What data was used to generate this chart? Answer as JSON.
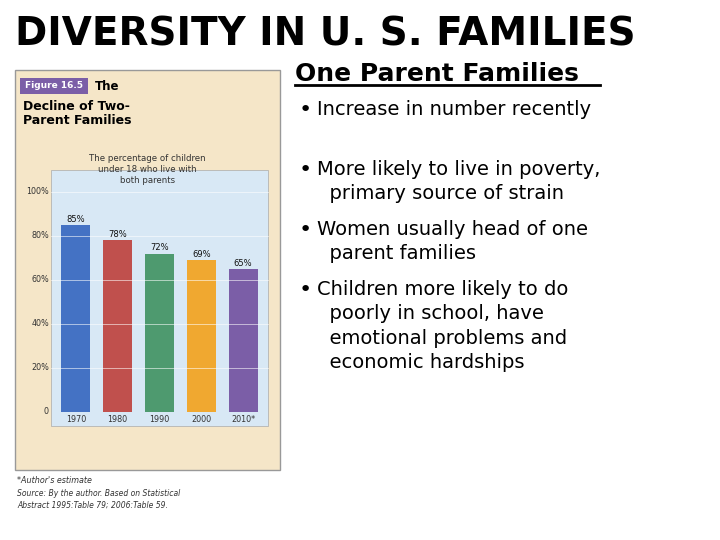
{
  "title": "DIVERSITY IN U. S. FAMILIES",
  "title_fontsize": 28,
  "title_fontweight": "bold",
  "background_color": "#ffffff",
  "right_heading": "One Parent Families",
  "bullet_points": [
    "Increase in number recently",
    "More likely to live in poverty,\n  primary source of strain",
    "Women usually head of one\n  parent families",
    "Children more likely to do\n  poorly in school, have\n  emotional problems and\n  economic hardships"
  ],
  "chart_title_line1": "Figure 16.5",
  "chart_title_the": "The",
  "chart_title_line2": "Decline of Two-",
  "chart_title_line3": "Parent Families",
  "chart_subtitle": "The percentage of children\nunder 18 who live with\nboth parents",
  "bar_years": [
    "1970",
    "1980",
    "1990",
    "2000",
    "2010*"
  ],
  "bar_values": [
    85,
    78,
    72,
    69,
    65
  ],
  "bar_colors": [
    "#4472c4",
    "#c0504d",
    "#4e9a6f",
    "#f0a830",
    "#7b5ea7"
  ],
  "chart_bg_color": "#f5e6c8",
  "chart_plot_bg": "#d8e8f5",
  "footnote1": "*Author's estimate",
  "footnote2": "Source: By the author. Based on Statistical\nAbstract 1995:Table 79; 2006:Table 59.",
  "figure_label_bg": "#7b5ea7",
  "figure_label_text": "Figure 16.5",
  "outer_box_color": "#999999"
}
